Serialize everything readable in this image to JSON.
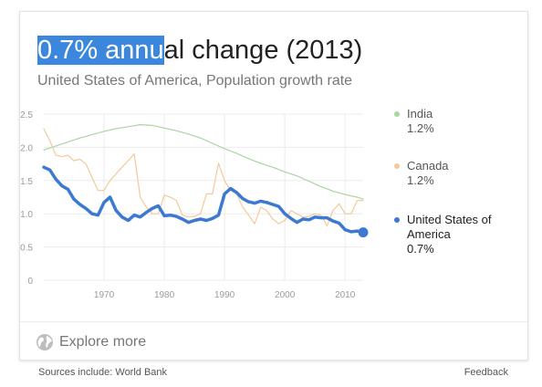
{
  "card": {
    "headline_highlight": "0.7% annu",
    "headline_rest": "al change (2013)",
    "subtitle": "United States of America, Population growth rate",
    "explore_label": "Explore more"
  },
  "footer": {
    "sources": "Sources include: World Bank",
    "feedback": "Feedback"
  },
  "colors": {
    "india": "#a9d6a1",
    "canada": "#f3c99a",
    "usa": "#3d79d1",
    "grid": "#ececec",
    "tick": "#9a9a9a"
  },
  "chart_data": {
    "type": "line",
    "ylim": [
      0,
      2.5
    ],
    "yticks": [
      "0",
      "0.5",
      "1.0",
      "1.5",
      "2.0",
      "2.5"
    ],
    "xlim": [
      1960,
      2013
    ],
    "xticks": [
      "1970",
      "1980",
      "1990",
      "2000",
      "2010"
    ],
    "grid": true,
    "legend_position": "right",
    "series": [
      {
        "key": "india",
        "name": "India",
        "value_label": "1.2%",
        "x": [
          1960,
          1962,
          1964,
          1966,
          1968,
          1970,
          1972,
          1974,
          1976,
          1978,
          1980,
          1982,
          1984,
          1986,
          1988,
          1990,
          1992,
          1994,
          1996,
          1998,
          2000,
          2002,
          2004,
          2006,
          2008,
          2010,
          2012,
          2013
        ],
        "values": [
          1.96,
          2.02,
          2.08,
          2.14,
          2.19,
          2.24,
          2.28,
          2.31,
          2.34,
          2.33,
          2.29,
          2.25,
          2.2,
          2.14,
          2.06,
          1.98,
          1.91,
          1.83,
          1.76,
          1.7,
          1.63,
          1.57,
          1.49,
          1.41,
          1.34,
          1.29,
          1.25,
          1.22
        ]
      },
      {
        "key": "canada",
        "name": "Canada",
        "value_label": "1.2%",
        "x": [
          1960,
          1961,
          1962,
          1963,
          1964,
          1965,
          1966,
          1967,
          1968,
          1969,
          1970,
          1971,
          1972,
          1973,
          1974,
          1975,
          1976,
          1977,
          1978,
          1979,
          1980,
          1981,
          1982,
          1983,
          1984,
          1985,
          1986,
          1987,
          1988,
          1989,
          1990,
          1991,
          1992,
          1993,
          1994,
          1995,
          1996,
          1997,
          1998,
          1999,
          2000,
          2001,
          2002,
          2003,
          2004,
          2005,
          2006,
          2007,
          2008,
          2009,
          2010,
          2011,
          2012,
          2013
        ],
        "values": [
          2.28,
          2.1,
          1.88,
          1.86,
          1.88,
          1.8,
          1.82,
          1.75,
          1.55,
          1.35,
          1.35,
          1.5,
          1.6,
          1.7,
          1.8,
          1.9,
          1.25,
          1.1,
          1.0,
          1.0,
          1.28,
          1.25,
          1.2,
          0.98,
          0.95,
          0.96,
          1.0,
          1.3,
          1.3,
          1.76,
          1.5,
          1.35,
          1.3,
          1.1,
          0.98,
          0.85,
          1.1,
          1.05,
          0.92,
          0.85,
          0.9,
          1.05,
          1.0,
          0.95,
          0.96,
          1.0,
          0.98,
          0.82,
          1.05,
          1.15,
          1.0,
          1.0,
          1.2,
          1.2
        ]
      },
      {
        "key": "usa",
        "name": "United States of America",
        "value_label": "0.7%",
        "x": [
          1960,
          1961,
          1962,
          1963,
          1964,
          1965,
          1966,
          1967,
          1968,
          1969,
          1970,
          1971,
          1972,
          1973,
          1974,
          1975,
          1976,
          1977,
          1978,
          1979,
          1980,
          1981,
          1982,
          1983,
          1984,
          1985,
          1986,
          1987,
          1988,
          1989,
          1990,
          1991,
          1992,
          1993,
          1994,
          1995,
          1996,
          1997,
          1998,
          1999,
          2000,
          2001,
          2002,
          2003,
          2004,
          2005,
          2006,
          2007,
          2008,
          2009,
          2010,
          2011,
          2012,
          2013
        ],
        "values": [
          1.7,
          1.66,
          1.52,
          1.42,
          1.37,
          1.22,
          1.14,
          1.08,
          1.0,
          0.98,
          1.17,
          1.25,
          1.05,
          0.95,
          0.9,
          0.98,
          0.95,
          1.02,
          1.08,
          1.12,
          0.97,
          0.98,
          0.96,
          0.92,
          0.87,
          0.9,
          0.92,
          0.9,
          0.93,
          0.98,
          1.3,
          1.38,
          1.32,
          1.23,
          1.18,
          1.16,
          1.19,
          1.17,
          1.14,
          1.11,
          1.0,
          0.93,
          0.87,
          0.92,
          0.91,
          0.95,
          0.94,
          0.94,
          0.89,
          0.86,
          0.76,
          0.73,
          0.74,
          0.72
        ]
      }
    ]
  }
}
